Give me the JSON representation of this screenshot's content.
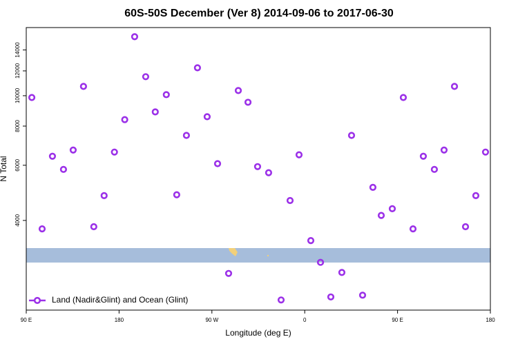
{
  "chart_data": {
    "type": "scatter",
    "title": "60S-50S December (Ver 8)   2014-09-06 to 2017-06-30",
    "x_label": "Longitude (deg E)",
    "y_label": "N Total",
    "log_y": true,
    "xlim": [
      90,
      540
    ],
    "ylim": [
      2070,
      16500
    ],
    "xticks": [
      {
        "value": 90,
        "label": "90 E"
      },
      180,
      {
        "value": 270,
        "label": "90 W"
      },
      {
        "value": 360,
        "label": "0"
      },
      {
        "value": 450,
        "label": "90 E"
      },
      {
        "value": 540,
        "label": "180"
      }
    ],
    "yticks": [
      4000,
      6000,
      8000,
      10000,
      12000,
      14000
    ],
    "legend": "bottom-left",
    "series": [
      {
        "name": "Land (Nadir&Glint) and Ocean (Glint)",
        "color": "#9b30e8",
        "x": [
          95.4,
          105.4,
          115.4,
          126.1,
          135.5,
          145.5,
          155.5,
          165.5,
          175.5,
          185.5,
          195.1,
          205.8,
          215.1,
          225.8,
          235.9,
          245.3,
          256.0,
          265.4,
          275.5,
          286.2,
          295.6,
          305.0,
          314.3,
          325.0,
          337.1,
          345.8,
          354.5,
          365.9,
          375.3,
          385.3,
          396.0,
          405.4,
          416.1,
          426.1,
          434.2,
          444.9,
          455.6,
          465.0,
          475.0,
          485.7,
          495.1,
          505.2,
          515.9,
          525.9,
          535.3
        ],
        "values": [
          9870,
          3760,
          6410,
          5820,
          6710,
          10710,
          3820,
          4800,
          6610,
          8390,
          15430,
          11500,
          8880,
          10080,
          4830,
          7470,
          12280,
          8570,
          6070,
          2710,
          10390,
          9530,
          5940,
          5680,
          2230,
          4630,
          6480,
          3450,
          2940,
          2280,
          2730,
          7470,
          2310,
          5100,
          4150,
          4360,
          9870,
          3760,
          6410,
          5820,
          6710,
          10710,
          3820,
          4800,
          6610
        ]
      }
    ]
  }
}
